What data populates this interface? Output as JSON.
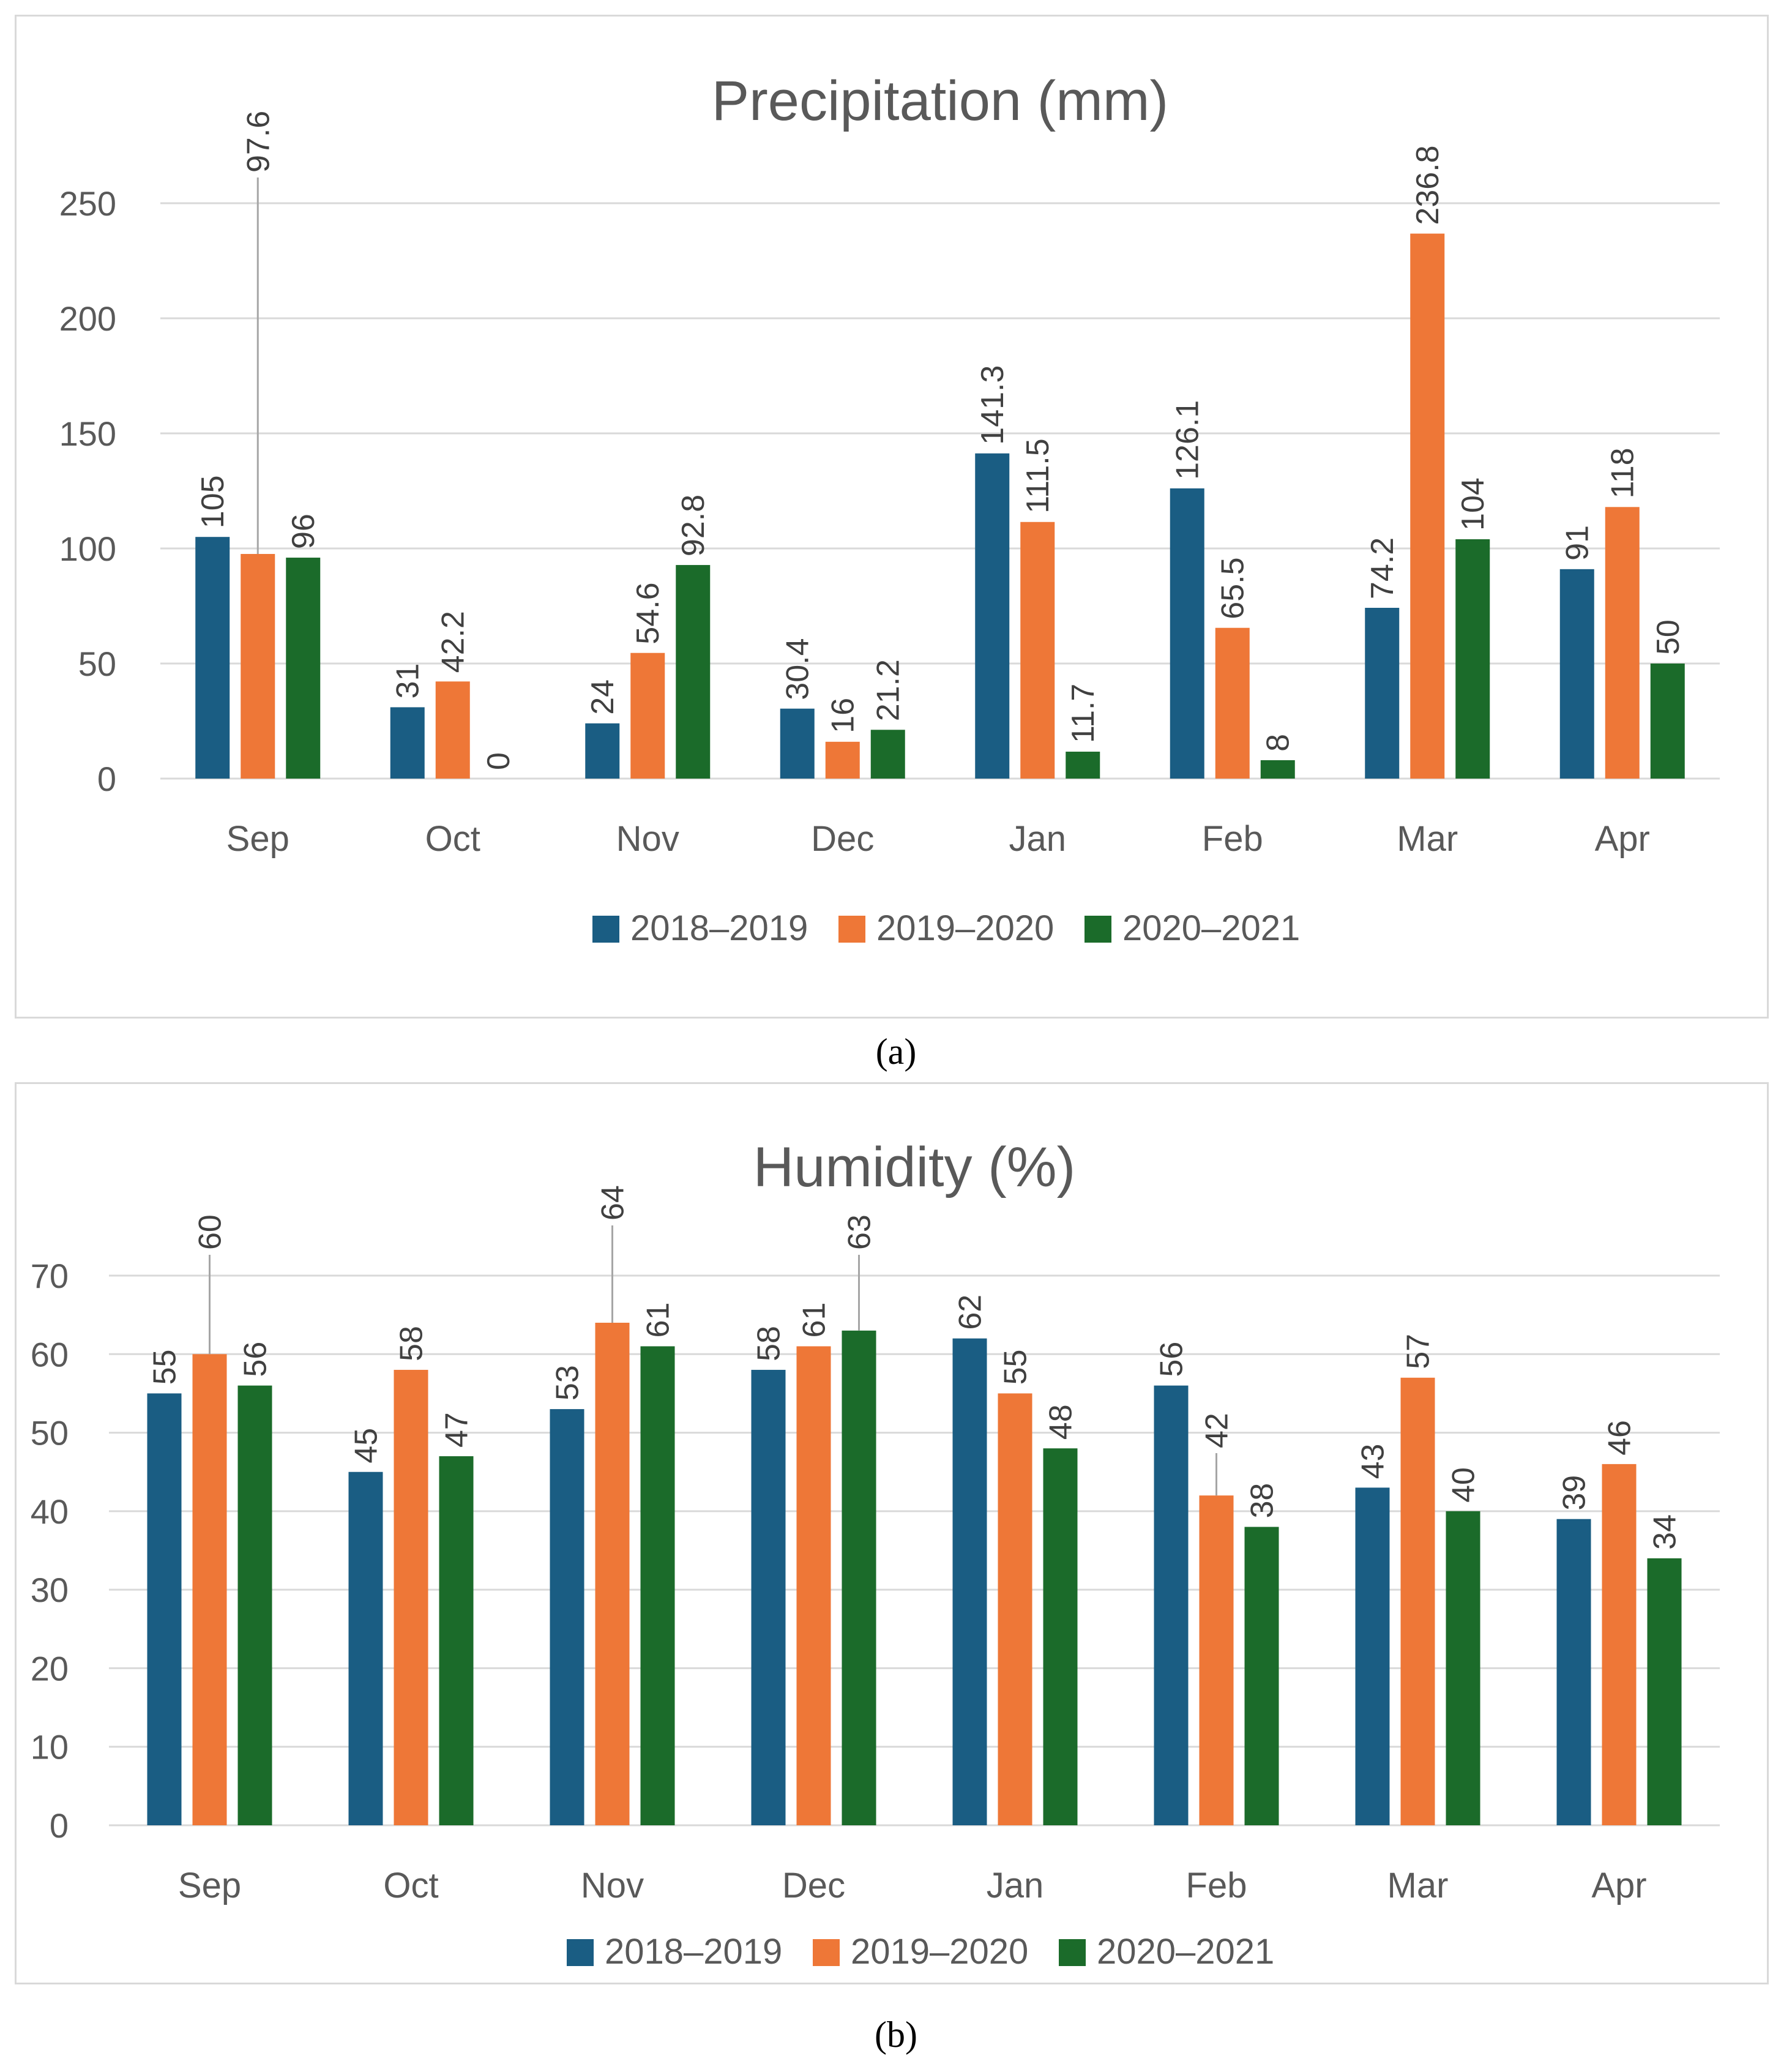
{
  "chart_data": [
    {
      "type": "bar",
      "id": "a",
      "panel_label": "(a)",
      "title": "Precipitation (mm)",
      "categories": [
        "Sep",
        "Oct",
        "Nov",
        "Dec",
        "Jan",
        "Feb",
        "Mar",
        "Apr"
      ],
      "series": [
        {
          "name": "2018–2019",
          "color": "#1a5d83",
          "values": [
            105,
            31,
            24,
            30.4,
            141.3,
            126.1,
            74.2,
            91
          ]
        },
        {
          "name": "2019–2020",
          "color": "#ee7737",
          "values": [
            97.6,
            42.2,
            54.6,
            16,
            111.5,
            65.5,
            236.8,
            118
          ]
        },
        {
          "name": "2020–2021",
          "color": "#1b6b2a",
          "values": [
            96,
            0,
            92.8,
            21.2,
            11.7,
            8,
            104,
            50
          ]
        }
      ],
      "ylim": [
        0,
        250
      ],
      "yticks": [
        0,
        50,
        100,
        150,
        200,
        250
      ],
      "grid": true,
      "legend": "bottom"
    },
    {
      "type": "bar",
      "id": "b",
      "panel_label": "(b)",
      "title": "Humidity (%)",
      "categories": [
        "Sep",
        "Oct",
        "Nov",
        "Dec",
        "Jan",
        "Feb",
        "Mar",
        "Apr"
      ],
      "series": [
        {
          "name": "2018–2019",
          "color": "#1a5d83",
          "values": [
            55,
            45,
            53,
            58,
            62,
            56,
            43,
            39
          ]
        },
        {
          "name": "2019–2020",
          "color": "#ee7737",
          "values": [
            60,
            58,
            64,
            61,
            55,
            42,
            57,
            46
          ]
        },
        {
          "name": "2020–2021",
          "color": "#1b6b2a",
          "values": [
            56,
            47,
            61,
            63,
            48,
            38,
            40,
            34
          ]
        }
      ],
      "ylim": [
        0,
        70
      ],
      "yticks": [
        0,
        10,
        20,
        30,
        40,
        50,
        60,
        70
      ],
      "grid": true,
      "legend": "bottom"
    }
  ]
}
